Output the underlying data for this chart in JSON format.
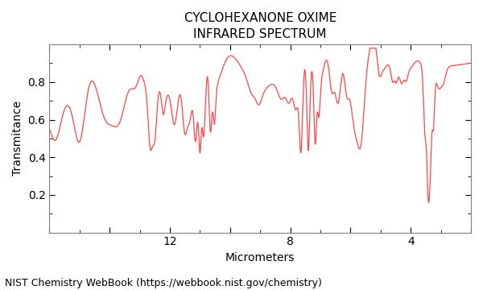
{
  "title_line1": "CYCLOHEXANONE OXIME",
  "title_line2": "INFRARED SPECTRUM",
  "xlabel": "Micrometers",
  "ylabel": "Transmitance",
  "footer": "NIST Chemistry WebBook (https://webbook.nist.gov/chemistry)",
  "xlim": [
    16,
    2
  ],
  "ylim": [
    0,
    1.0
  ],
  "xticks": [
    16,
    14,
    12,
    10,
    8,
    6,
    4,
    2
  ],
  "xtick_labels": [
    "",
    "",
    "12",
    "",
    "8",
    "",
    "4",
    ""
  ],
  "yticks": [
    0.2,
    0.4,
    0.6,
    0.8
  ],
  "line_color": "#ff4444",
  "background_color": "#ffffff",
  "title_fontsize": 11,
  "axis_fontsize": 10,
  "footer_fontsize": 9,
  "figsize": [
    6.0,
    3.6
  ],
  "dpi": 100
}
